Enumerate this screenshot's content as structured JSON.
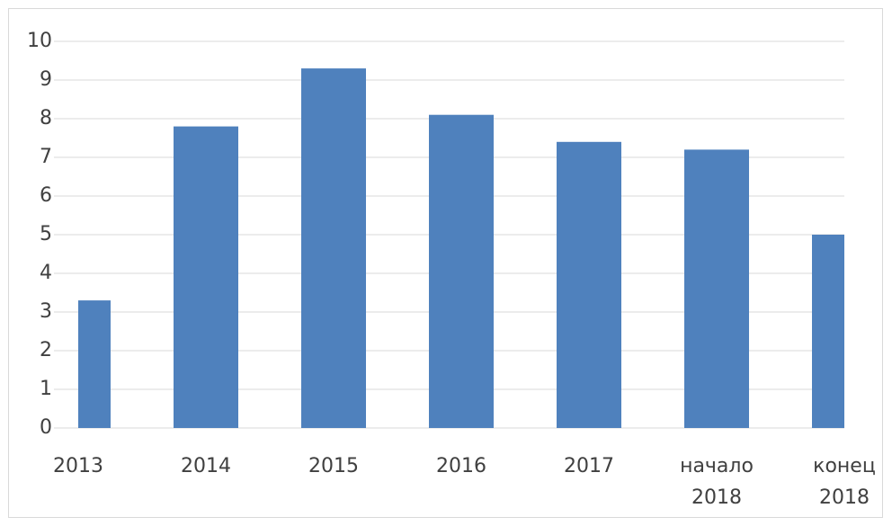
{
  "chart_data": {
    "type": "bar",
    "categories": [
      "2013",
      "2014",
      "2015",
      "2016",
      "2017",
      "начало 2018",
      "конец 2018"
    ],
    "values": [
      3.3,
      7.8,
      9.3,
      8.1,
      7.4,
      7.2,
      5.0
    ],
    "color": "#4f81bd",
    "ylim": [
      0,
      10
    ],
    "yticks": [
      0,
      1,
      2,
      3,
      4,
      5,
      6,
      7,
      8,
      9,
      10
    ],
    "grid": true
  }
}
